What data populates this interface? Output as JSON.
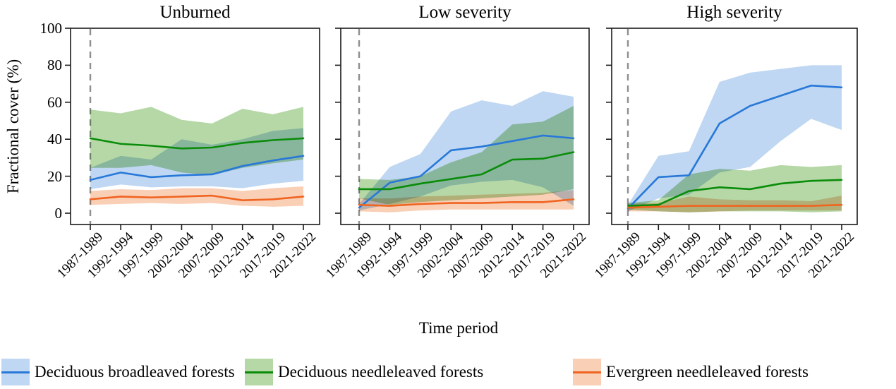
{
  "chart_data": {
    "type": "line",
    "title": "",
    "xlabel": "Time period",
    "ylabel": "Fractional cover (%)",
    "ylim": [
      -6,
      100
    ],
    "y_ticks": [
      0,
      20,
      40,
      60,
      80,
      100
    ],
    "grid": false,
    "legend_position": "bottom",
    "baseline_marker": "gray dashed vertical line at first time period (1987-1989) in each panel",
    "categories": [
      "1987-1989",
      "1992-1994",
      "1997-1999",
      "2002-2004",
      "2007-2009",
      "2012-2014",
      "2017-2019",
      "2021-2022"
    ],
    "axis_color": "#1a1a1a",
    "dashed_line_color": "#8f8f8f",
    "panels": [
      {
        "title": "Unburned",
        "series": [
          {
            "name": "Deciduous broadleaved forests",
            "color": "#2878d8",
            "band_color": "#bfd7f2",
            "mean": [
              18,
              22,
              19.5,
              20.5,
              21,
              25.5,
              28.5,
              31
            ],
            "band_low": [
              13,
              15.5,
              14,
              14.5,
              14.5,
              13.5,
              16,
              17.5
            ],
            "band_high": [
              24.5,
              31,
              29,
              40,
              37,
              40,
              44.5,
              46
            ]
          },
          {
            "name": "Deciduous needleleaved forests",
            "color": "#0a8c0a",
            "band_color": "#b5d8a6",
            "mean": [
              40.5,
              37.5,
              36.5,
              35,
              35.5,
              38,
              39.5,
              40.5
            ],
            "band_low": [
              24.5,
              24.5,
              26,
              22,
              20.5,
              24.5,
              27,
              29
            ],
            "band_high": [
              56,
              54,
              57.5,
              50.5,
              48.5,
              56.5,
              53.5,
              57.5
            ]
          },
          {
            "name": "Evergreen needleleaved forests",
            "color": "#f06421",
            "band_color": "#f9cfb6",
            "mean": [
              7.5,
              9,
              8.5,
              9,
              9.5,
              7,
              7.5,
              9
            ],
            "band_low": [
              4.5,
              5,
              5.5,
              5,
              5.5,
              4,
              3.5,
              4
            ],
            "band_high": [
              12,
              13,
              12.5,
              13.5,
              13.5,
              12,
              13.5,
              14.5
            ]
          }
        ]
      },
      {
        "title": "Low severity",
        "series": [
          {
            "name": "Deciduous broadleaved forests",
            "color": "#2878d8",
            "band_color": "#bfd7f2",
            "mean": [
              3,
              16.5,
              20,
              34,
              36,
              39,
              42,
              40.5
            ],
            "band_low": [
              1.5,
              5,
              9,
              15,
              17,
              18,
              14,
              4
            ],
            "band_high": [
              5,
              25,
              32,
              55,
              61,
              58,
              66,
              63
            ]
          },
          {
            "name": "Deciduous needleleaved forests",
            "color": "#0a8c0a",
            "band_color": "#b5d8a6",
            "mean": [
              13,
              13,
              16,
              18.5,
              21,
              29,
              29.5,
              33
            ],
            "band_low": [
              8,
              4.5,
              6,
              7,
              8,
              9,
              10,
              13
            ],
            "band_high": [
              18.5,
              18,
              20,
              27.5,
              33,
              48,
              49.5,
              58
            ]
          },
          {
            "name": "Evergreen needleleaved forests",
            "color": "#f06421",
            "band_color": "#f9cfb6",
            "mean": [
              4.5,
              4,
              5,
              5.5,
              5.5,
              6,
              6,
              7.5
            ],
            "band_low": [
              1,
              0.5,
              1.5,
              2,
              2,
              2,
              2,
              2
            ],
            "band_high": [
              8,
              8,
              9,
              9.5,
              10,
              10.5,
              11,
              12.5
            ]
          }
        ]
      },
      {
        "title": "High severity",
        "series": [
          {
            "name": "Deciduous broadleaved forests",
            "color": "#2878d8",
            "band_color": "#bfd7f2",
            "mean": [
              2.5,
              19.5,
              20.5,
              48.5,
              58,
              63.5,
              69,
              68
            ],
            "band_low": [
              1,
              8,
              10,
              22,
              25,
              39,
              51,
              45
            ],
            "band_high": [
              4.5,
              31,
              33.5,
              71,
              76,
              78,
              80,
              80
            ]
          },
          {
            "name": "Deciduous needleleaved forests",
            "color": "#0a8c0a",
            "band_color": "#b5d8a6",
            "mean": [
              4,
              4.5,
              12,
              14,
              13,
              16,
              17.5,
              18
            ],
            "band_low": [
              2,
              1,
              0.5,
              1,
              1,
              1,
              0.5,
              1
            ],
            "band_high": [
              5.5,
              7,
              21,
              24,
              23,
              26,
              25,
              26
            ]
          },
          {
            "name": "Evergreen needleleaved forests",
            "color": "#f06421",
            "band_color": "#f9cfb6",
            "mean": [
              3,
              3.5,
              4,
              4,
              4,
              4,
              4,
              4.5
            ],
            "band_low": [
              1,
              1,
              0.5,
              1,
              1.5,
              1.5,
              1.5,
              1.5
            ],
            "band_high": [
              5,
              5.5,
              9,
              7.5,
              7,
              7,
              6.5,
              9.5
            ]
          }
        ]
      }
    ]
  }
}
